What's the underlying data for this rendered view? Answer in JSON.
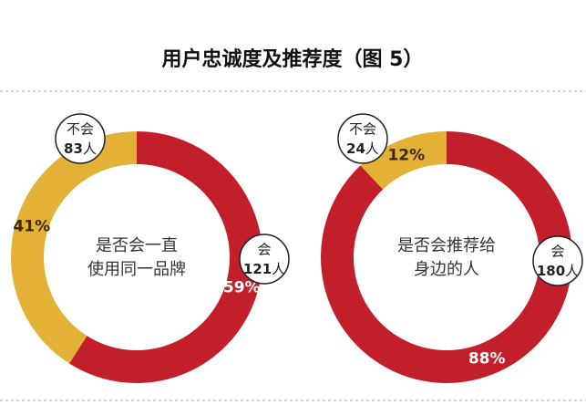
{
  "title": "用户忠诚度及推荐度（图 5）",
  "chart_data": [
    {
      "type": "donut",
      "center_lines": [
        "是否会一直",
        "使用同一品牌"
      ],
      "categories": [
        "会",
        "不会"
      ],
      "values": [
        59,
        41
      ],
      "value_labels": [
        "59%",
        "41%"
      ],
      "counts": [
        121,
        83
      ],
      "count_unit": "人",
      "colors": [
        "#c21f2b",
        "#e2b135"
      ]
    },
    {
      "type": "donut",
      "center_lines": [
        "是否会推荐给",
        "身边的人"
      ],
      "categories": [
        "会",
        "不会"
      ],
      "values": [
        88,
        12
      ],
      "value_labels": [
        "88%",
        "12%"
      ],
      "counts": [
        180,
        24
      ],
      "count_unit": "人",
      "colors": [
        "#c21f2b",
        "#e2b135"
      ]
    }
  ]
}
